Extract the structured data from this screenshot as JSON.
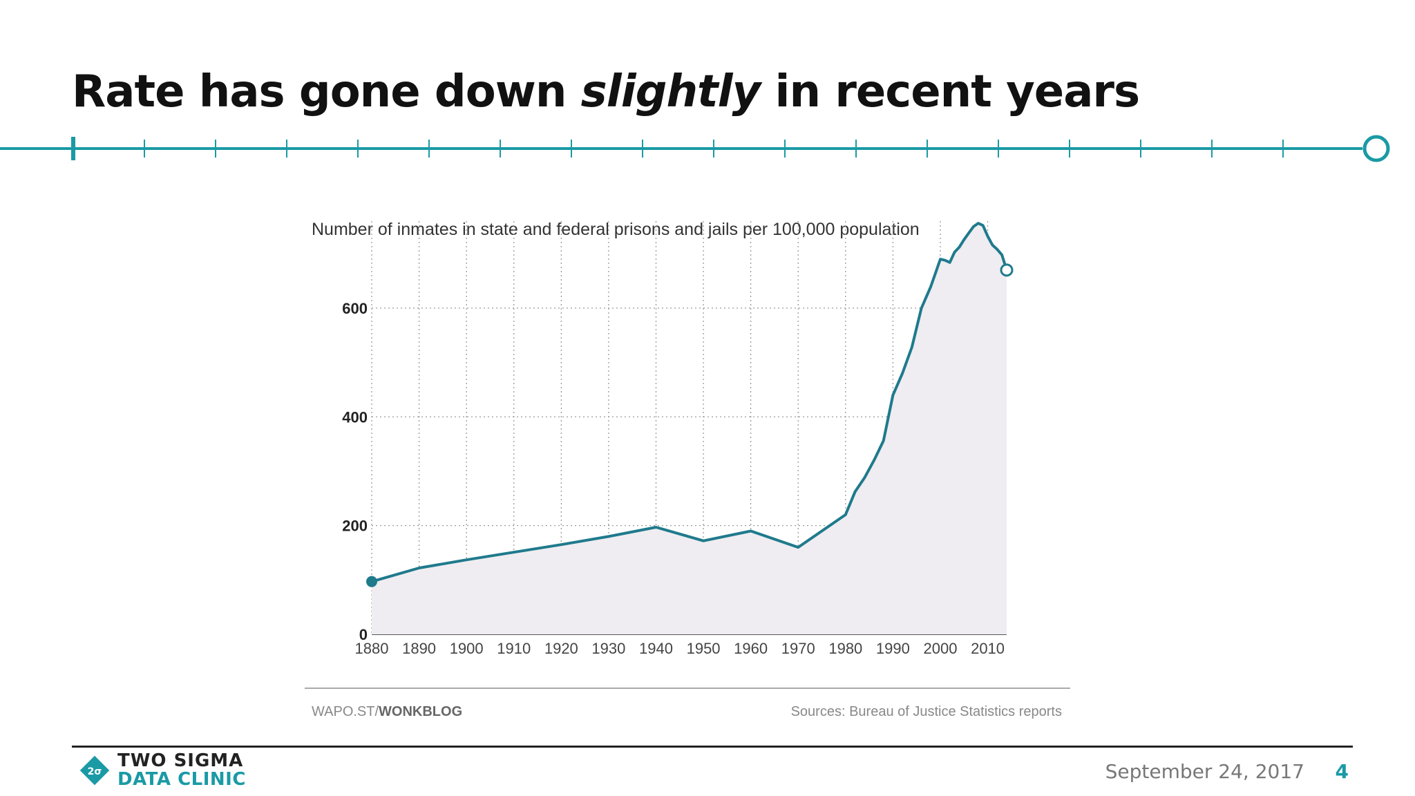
{
  "slide": {
    "title_before": "Rate has gone down ",
    "title_emphasis": "slightly",
    "title_after": " in recent years",
    "accent_color": "#1a9aa5"
  },
  "footer": {
    "logo_line1": "TWO SIGMA",
    "logo_line2": "DATA CLINIC",
    "logo_mark_glyph": "2σ",
    "date": "September 24, 2017",
    "page_number": "4"
  },
  "chart_data": {
    "type": "line",
    "title": "Number of inmates in state and federal prisons and jails per 100,000 population",
    "xlabel": "",
    "ylabel": "",
    "xlim": [
      1880,
      2014
    ],
    "ylim": [
      0,
      760
    ],
    "x_ticks": [
      1880,
      1890,
      1900,
      1910,
      1920,
      1930,
      1940,
      1950,
      1960,
      1970,
      1980,
      1990,
      2000,
      2010
    ],
    "y_ticks": [
      0,
      200,
      400,
      600
    ],
    "grid": true,
    "line_color": "#1f7a8c",
    "area_color": "#efedf1",
    "series": [
      {
        "name": "",
        "x": [
          1880,
          1890,
          1900,
          1910,
          1920,
          1930,
          1940,
          1950,
          1960,
          1970,
          1980,
          1982,
          1984,
          1986,
          1988,
          1990,
          1992,
          1994,
          1996,
          1998,
          2000,
          2001,
          2002,
          2003,
          2004,
          2005,
          2006,
          2007,
          2008,
          2009,
          2010,
          2011,
          2012,
          2013,
          2014
        ],
        "y": [
          97,
          122,
          137,
          151,
          165,
          180,
          197,
          172,
          190,
          160,
          220,
          262,
          288,
          320,
          356,
          440,
          480,
          528,
          600,
          640,
          690,
          688,
          684,
          703,
          712,
          726,
          738,
          750,
          756,
          752,
          732,
          716,
          708,
          698,
          670
        ]
      }
    ]
  },
  "chart_footer": {
    "source_prefix": "WAPO.ST/",
    "source_brand": "WONKBLOG",
    "sources": "Sources: Bureau of Justice Statistics reports"
  }
}
